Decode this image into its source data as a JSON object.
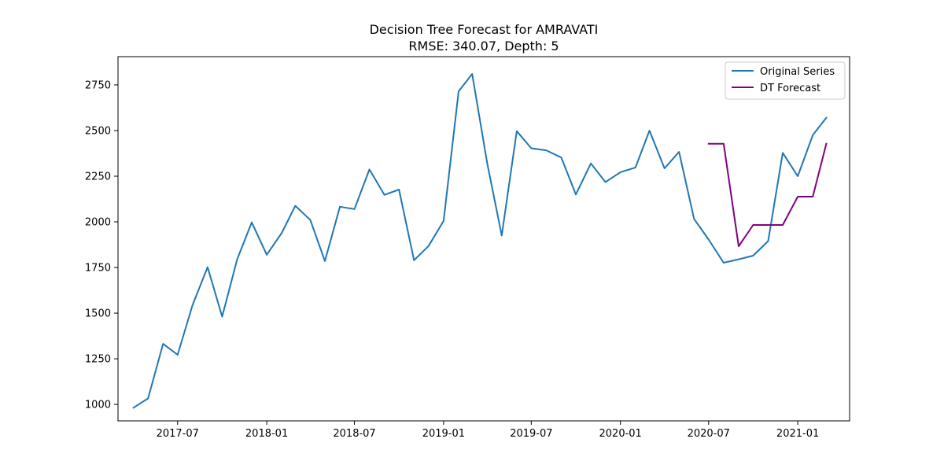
{
  "chart_data": {
    "type": "line",
    "title": "Decision Tree Forecast for AMRAVATI",
    "subtitle": "RMSE: 340.07, Depth: 5",
    "xlabel": "",
    "ylabel": "",
    "x_tick_labels": [
      "2017-07",
      "2018-01",
      "2018-07",
      "2019-01",
      "2019-07",
      "2020-01",
      "2020-07",
      "2021-01"
    ],
    "y_ticks": [
      1000,
      1250,
      1500,
      1750,
      2000,
      2250,
      2500,
      2750
    ],
    "ylim": [
      910,
      2905
    ],
    "xlim": [
      "2017-02-28",
      "2021-04-18"
    ],
    "grid": false,
    "legend_position": "top-right",
    "series": [
      {
        "name": "Original Series",
        "color": "#1f77b4",
        "x": [
          "2017-04",
          "2017-05",
          "2017-06",
          "2017-07",
          "2017-08",
          "2017-09",
          "2017-10",
          "2017-11",
          "2017-12",
          "2018-01",
          "2018-02",
          "2018-03",
          "2018-04",
          "2018-05",
          "2018-06",
          "2018-07",
          "2018-08",
          "2018-09",
          "2018-10",
          "2018-11",
          "2018-12",
          "2019-01",
          "2019-02",
          "2019-03",
          "2019-04",
          "2019-05",
          "2019-06",
          "2019-07",
          "2019-08",
          "2019-09",
          "2019-10",
          "2019-11",
          "2019-12",
          "2020-01",
          "2020-02",
          "2020-03",
          "2020-04",
          "2020-05",
          "2020-06",
          "2020-07",
          "2020-08",
          "2020-09",
          "2020-10",
          "2020-11",
          "2020-12",
          "2021-01",
          "2021-02",
          "2021-03"
        ],
        "values": [
          982,
          1033,
          1332,
          1272,
          1545,
          1752,
          1481,
          1795,
          1997,
          1820,
          1940,
          2088,
          2010,
          1785,
          2083,
          2070,
          2287,
          2148,
          2177,
          1790,
          1868,
          2005,
          2715,
          2810,
          2322,
          1925,
          2497,
          2403,
          2392,
          2352,
          2150,
          2320,
          2218,
          2272,
          2298,
          2500,
          2293,
          2383,
          2016,
          1903,
          1776,
          1795,
          1815,
          1895,
          2378,
          2250,
          2475,
          2570
        ]
      },
      {
        "name": "DT Forecast",
        "color": "#800080",
        "x": [
          "2020-07",
          "2020-08",
          "2020-09",
          "2020-10",
          "2020-11",
          "2020-12",
          "2021-01",
          "2021-02",
          "2021-03"
        ],
        "values": [
          2428,
          2428,
          1866,
          1983,
          1983,
          1983,
          2138,
          2138,
          2428
        ]
      }
    ]
  }
}
